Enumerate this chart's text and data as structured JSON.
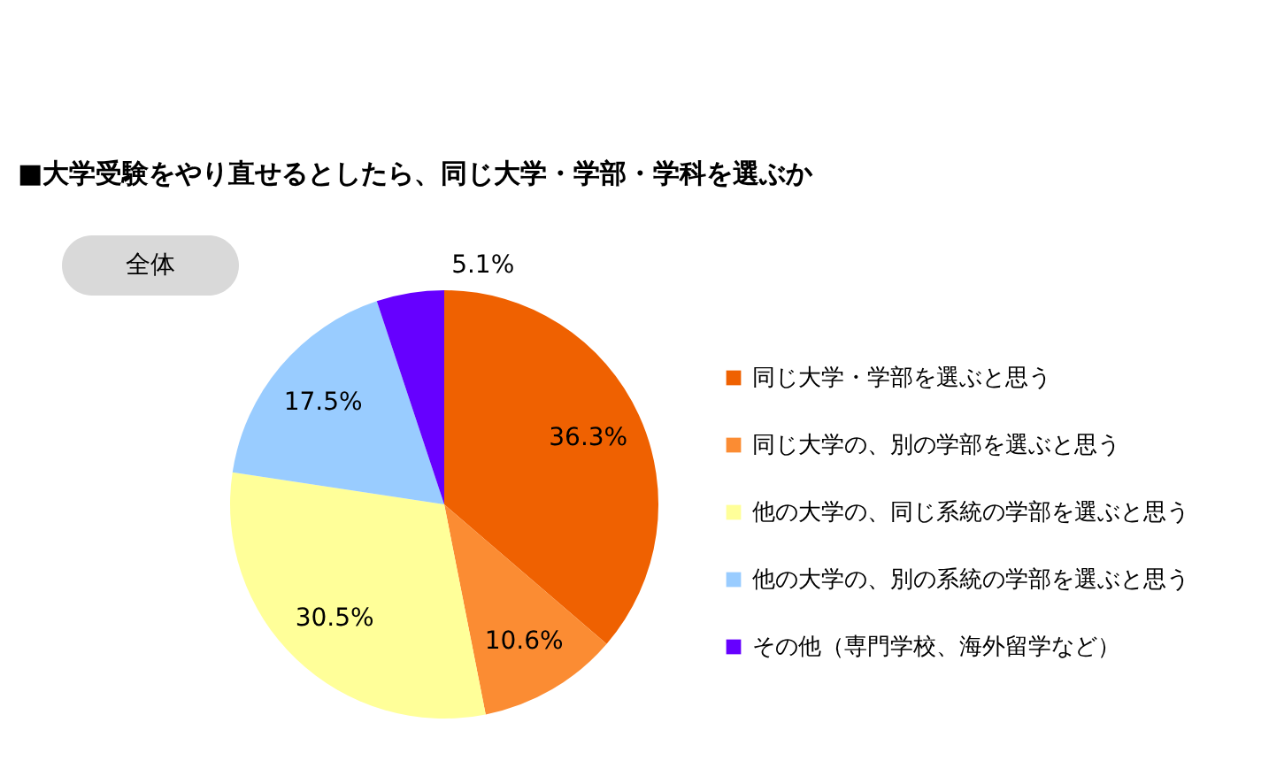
{
  "chart_data": {
    "type": "pie",
    "title": "■大学受験をやり直せるとしたら、同じ大学・学部・学科を選ぶか",
    "subtitle": "全体",
    "categories": [
      "同じ大学・学部を選ぶと思う",
      "同じ大学の、別の学部を選ぶと思う",
      "他の大学の、同じ系統の学部を選ぶと思う",
      "他の大学の、別の系統の学部を選ぶと思う",
      "その他（専門学校、海外留学など）"
    ],
    "values": [
      36.3,
      10.6,
      30.5,
      17.5,
      5.1
    ],
    "value_labels": [
      "36.3%",
      "10.6%",
      "30.5%",
      "17.5%",
      "5.1%"
    ],
    "colors": [
      "#ef6101",
      "#fb8c33",
      "#ffff99",
      "#99ccff",
      "#6600ff"
    ],
    "legend": "right"
  }
}
